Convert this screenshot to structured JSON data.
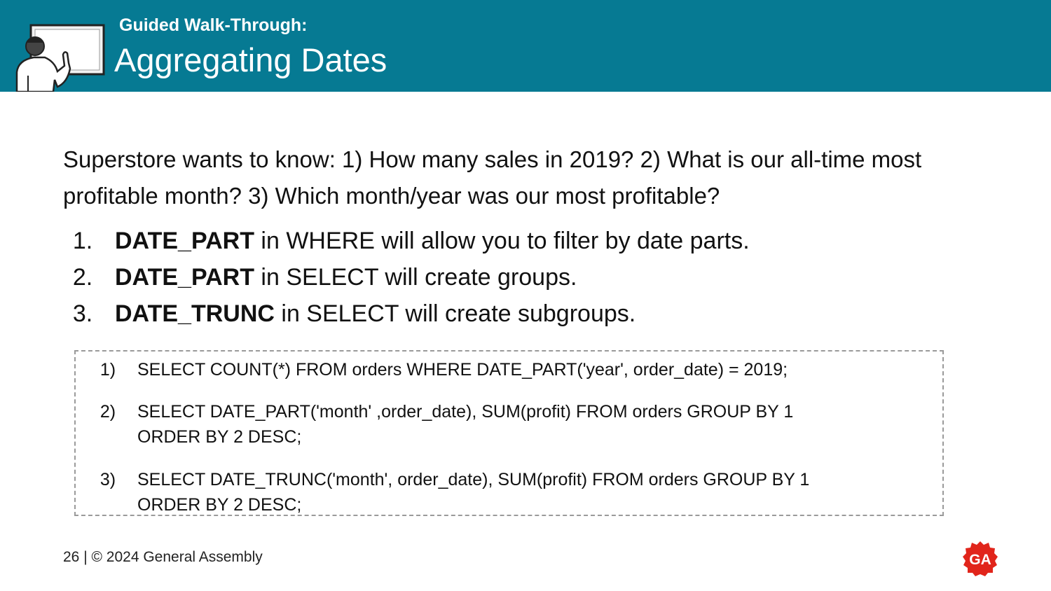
{
  "header": {
    "subtitle": "Guided Walk-Through:",
    "title": "Aggregating Dates"
  },
  "intro": "Superstore wants to know: 1) How many sales in 2019? 2) What is our all-time most profitable month? 3) Which month/year was our most profitable?",
  "steps": [
    {
      "num": "1.",
      "keyword": "DATE_PART",
      "rest": " in WHERE will allow you to filter by date parts."
    },
    {
      "num": "2.",
      "keyword": "DATE_PART",
      "rest": " in SELECT will create groups."
    },
    {
      "num": "3.",
      "keyword": "DATE_TRUNC",
      "rest": " in SELECT will create subgroups."
    }
  ],
  "code": [
    {
      "num": "1)",
      "line1": "SELECT COUNT(*) FROM orders WHERE DATE_PART('year', order_date) = 2019;"
    },
    {
      "num": "2)",
      "line1": "SELECT DATE_PART('month' ,order_date), SUM(profit) FROM orders GROUP BY 1",
      "line2": "ORDER BY 2 DESC;"
    },
    {
      "num": "3)",
      "line1": "SELECT DATE_TRUNC('month', order_date), SUM(profit) FROM orders GROUP BY 1",
      "line2": "ORDER BY 2 DESC;"
    }
  ],
  "footer": {
    "page": "26",
    "separator": " | ",
    "copyright": "© 2024 General Assembly"
  },
  "logo": {
    "text": "GA",
    "color": "#e1251b"
  },
  "colors": {
    "header_bg": "#067a93"
  },
  "icons": {
    "presenter": "presenter-whiteboard-icon"
  }
}
